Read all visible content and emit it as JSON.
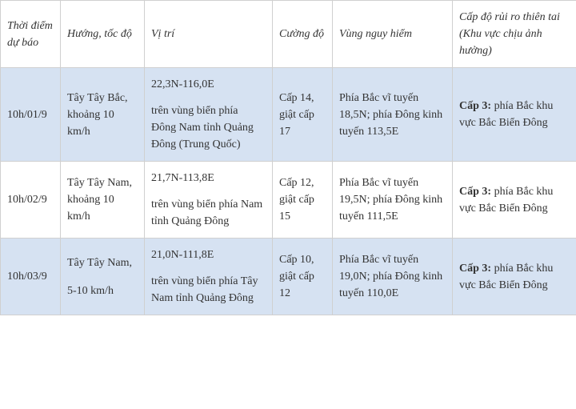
{
  "columns": [
    "Thời điểm dự báo",
    "Hướng, tốc độ",
    "Vị trí",
    "Cường độ",
    "Vùng nguy hiểm",
    "Cấp độ rủi ro thiên tai (Khu vực chịu ảnh hưởng)"
  ],
  "rows": [
    {
      "time": "10h/01/9",
      "direction": "Tây Tây Bắc, khoảng 10 km/h",
      "coord": "22,3N-116,0E",
      "location": "trên vùng biển phía Đông Nam tỉnh Quảng Đông (Trung Quốc)",
      "intensity": "Cấp 14, giật cấp 17",
      "danger": "Phía Bắc vĩ tuyến 18,5N; phía Đông kinh tuyến 113,5E",
      "risk_label": "Cấp 3:",
      "risk_text": " phía Bắc khu vực Bắc Biển Đông"
    },
    {
      "time": "10h/02/9",
      "direction": "Tây Tây Nam, khoảng 10 km/h",
      "coord": "21,7N-113,8E",
      "location": "trên vùng biển phía Nam tỉnh Quảng Đông",
      "intensity": "Cấp 12, giật cấp 15",
      "danger": "Phía Bắc vĩ tuyến 19,5N; phía Đông kinh tuyến 111,5E",
      "risk_label": "Cấp 3:",
      "risk_text": " phía Bắc khu vực Bắc Biển Đông"
    },
    {
      "time": "10h/03/9",
      "direction_line1": "Tây Tây Nam,",
      "direction_line2": "5-10 km/h",
      "coord": "21,0N-111,8E",
      "location": "trên vùng biển phía Tây Nam tỉnh Quảng Đông",
      "intensity": "Cấp 10, giật cấp 12",
      "danger": "Phía Bắc vĩ tuyến 19,0N; phía Đông kinh tuyến 110,0E",
      "risk_label": "Cấp 3:",
      "risk_text": " phía Bắc khu vực Bắc Biển Đông"
    }
  ],
  "style": {
    "alt_row_bg": "#d6e2f2",
    "plain_row_bg": "#ffffff",
    "border_color": "#d0d0d0",
    "font_family": "Times New Roman",
    "text_color": "#333333"
  }
}
